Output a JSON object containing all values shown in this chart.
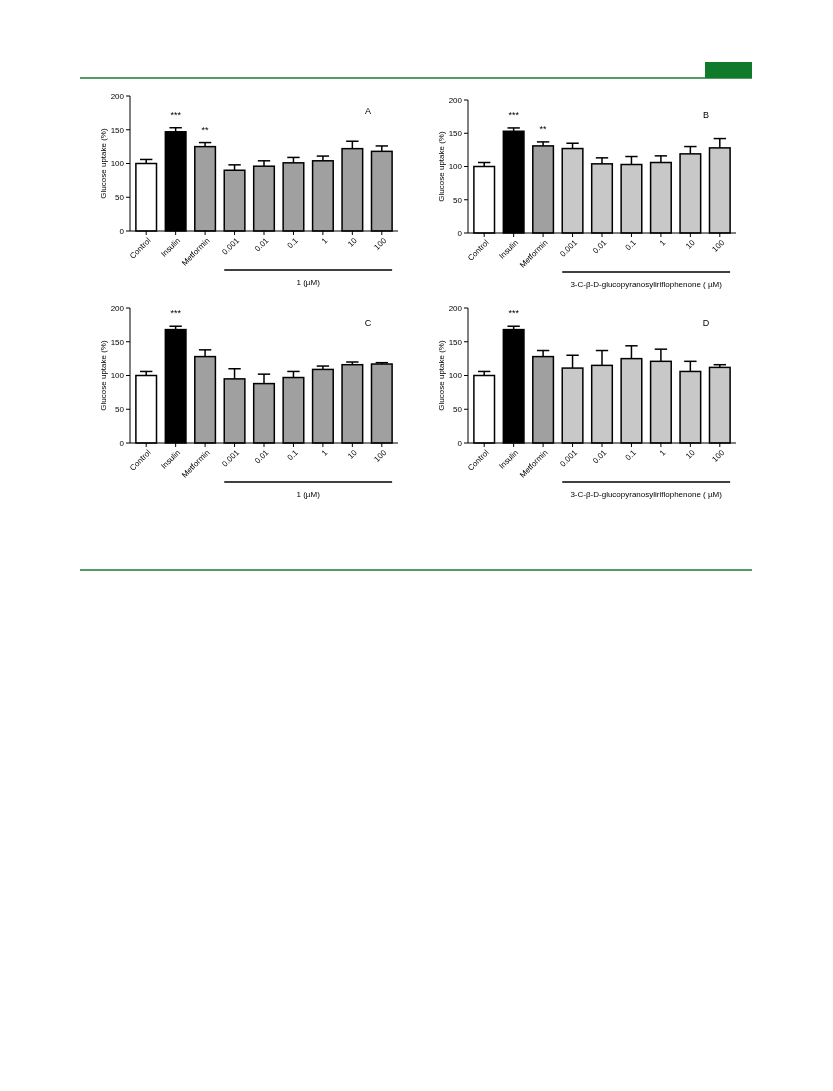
{
  "chart_data": [
    {
      "type": "bar",
      "title": "A",
      "ylabel": "Glucose uptake (%)",
      "xlabel": "1 (µM)",
      "categories": [
        "Control",
        "Insulin",
        "Metformin",
        "0.001",
        "0.01",
        "0.1",
        "1",
        "10",
        "100"
      ],
      "values": [
        100,
        147,
        125,
        90,
        96,
        101,
        104,
        122,
        118
      ],
      "errors": [
        6,
        6,
        6,
        8,
        8,
        8,
        7,
        11,
        8
      ],
      "colors": [
        "#ffffff",
        "#000000",
        "#a0a0a0",
        "#a0a0a0",
        "#a0a0a0",
        "#a0a0a0",
        "#a0a0a0",
        "#a0a0a0",
        "#a0a0a0"
      ],
      "ylim": [
        0,
        200
      ],
      "yticks": [
        0,
        50,
        100,
        150,
        200
      ],
      "annotations": [
        {
          "text": "***",
          "x": "Insulin",
          "y": 153
        },
        {
          "text": "**",
          "x": "Metformin",
          "y": 131
        }
      ]
    },
    {
      "type": "bar",
      "title": "B",
      "ylabel": "Glucose uptake (%)",
      "xlabel": "3-C-β-D-glucopyranosyliriflophenone ( µM)",
      "categories": [
        "Control",
        "Insulin",
        "Metformin",
        "0.001",
        "0.01",
        "0.1",
        "1",
        "10",
        "100"
      ],
      "values": [
        100,
        153,
        131,
        127,
        104,
        103,
        106,
        119,
        128
      ],
      "errors": [
        6,
        5,
        6,
        8,
        9,
        12,
        10,
        11,
        14
      ],
      "colors": [
        "#ffffff",
        "#000000",
        "#a0a0a0",
        "#c8c8c8",
        "#c8c8c8",
        "#c8c8c8",
        "#c8c8c8",
        "#c8c8c8",
        "#c8c8c8"
      ],
      "ylim": [
        0,
        200
      ],
      "yticks": [
        0,
        50,
        100,
        150,
        200
      ],
      "annotations": [
        {
          "text": "***",
          "x": "Insulin",
          "y": 158
        },
        {
          "text": "**",
          "x": "Metformin",
          "y": 137
        }
      ]
    },
    {
      "type": "bar",
      "title": "C",
      "ylabel": "Glucose uptake (%)",
      "xlabel": "1 (µM)",
      "categories": [
        "Control",
        "Insulin",
        "Metformin",
        "0.001",
        "0.01",
        "0.1",
        "1",
        "10",
        "100"
      ],
      "values": [
        100,
        168,
        128,
        95,
        88,
        97,
        109,
        116,
        117
      ],
      "errors": [
        6,
        5,
        10,
        15,
        14,
        9,
        5,
        4,
        2
      ],
      "colors": [
        "#ffffff",
        "#000000",
        "#a0a0a0",
        "#a0a0a0",
        "#a0a0a0",
        "#a0a0a0",
        "#a0a0a0",
        "#a0a0a0",
        "#a0a0a0"
      ],
      "ylim": [
        0,
        200
      ],
      "yticks": [
        0,
        50,
        100,
        150,
        200
      ],
      "annotations": [
        {
          "text": "***",
          "x": "Insulin",
          "y": 173
        }
      ]
    },
    {
      "type": "bar",
      "title": "D",
      "ylabel": "Glucose uptake (%)",
      "xlabel": "3-C-β-D-glucopyranosyliriflophenone ( µM)",
      "categories": [
        "Control",
        "Insulin",
        "Metformin",
        "0.001",
        "0.01",
        "0.1",
        "1",
        "10",
        "100"
      ],
      "values": [
        100,
        168,
        128,
        111,
        115,
        125,
        121,
        106,
        112
      ],
      "errors": [
        6,
        5,
        9,
        19,
        22,
        19,
        18,
        15,
        4
      ],
      "colors": [
        "#ffffff",
        "#000000",
        "#a0a0a0",
        "#c8c8c8",
        "#c8c8c8",
        "#c8c8c8",
        "#c8c8c8",
        "#c8c8c8",
        "#c8c8c8"
      ],
      "ylim": [
        0,
        200
      ],
      "yticks": [
        0,
        50,
        100,
        150,
        200
      ],
      "annotations": [
        {
          "text": "***",
          "x": "Insulin",
          "y": 173
        }
      ]
    }
  ]
}
